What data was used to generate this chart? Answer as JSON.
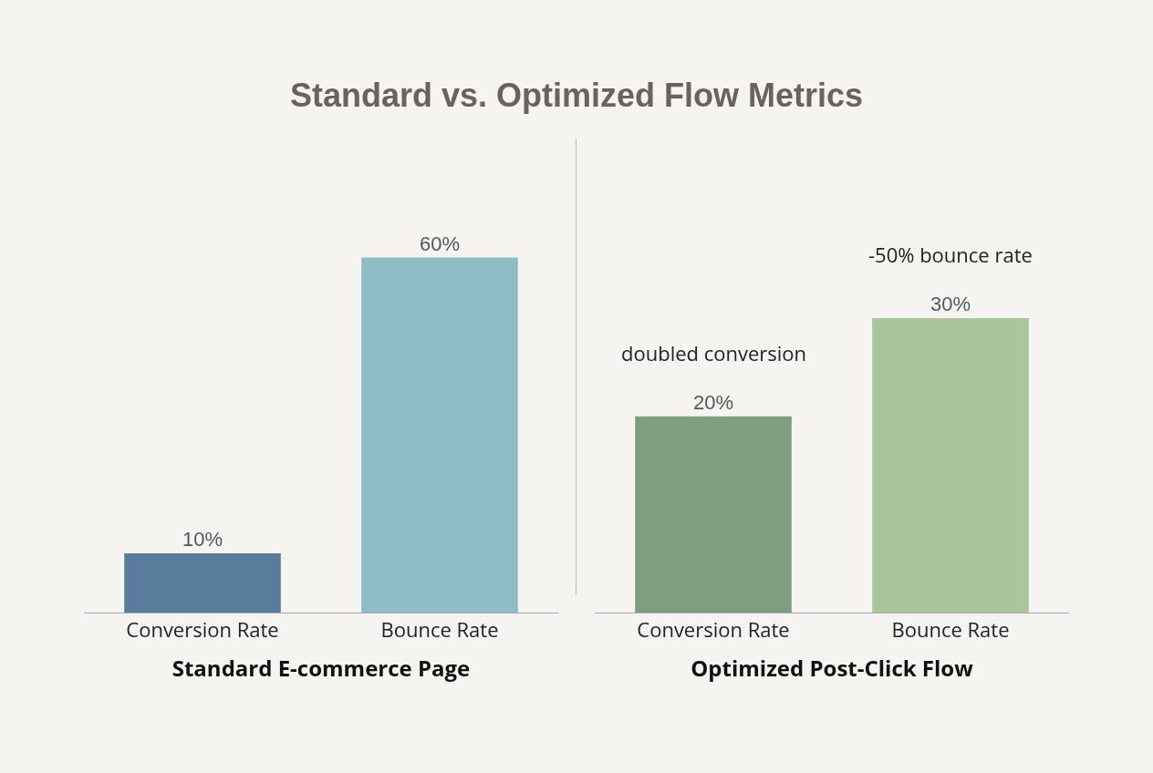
{
  "chart_data": [
    {
      "type": "bar",
      "title": "Standard vs. Optimized Flow Metrics",
      "xlabel": "Standard E-commerce Page",
      "categories": [
        "Conversion Rate",
        "Bounce Rate"
      ],
      "values": [
        10,
        60
      ],
      "value_labels": [
        "10%",
        "60%"
      ],
      "colors": [
        "#5a7c9c",
        "#8fbdc5"
      ],
      "grid": false
    },
    {
      "type": "bar",
      "xlabel": "Optimized Post-Click Flow",
      "categories": [
        "Conversion Rate",
        "Bounce Rate"
      ],
      "values": [
        20,
        30
      ],
      "value_labels": [
        "20%",
        "30%"
      ],
      "colors": [
        "#7e9e80",
        "#a8c59c"
      ],
      "grid": false,
      "annotations": [
        {
          "text": "doubled conversion",
          "x": "Conversion Rate",
          "y": 20
        },
        {
          "text": "-50% bounce rate",
          "x": "Bounce Rate",
          "y": 30
        }
      ]
    }
  ]
}
